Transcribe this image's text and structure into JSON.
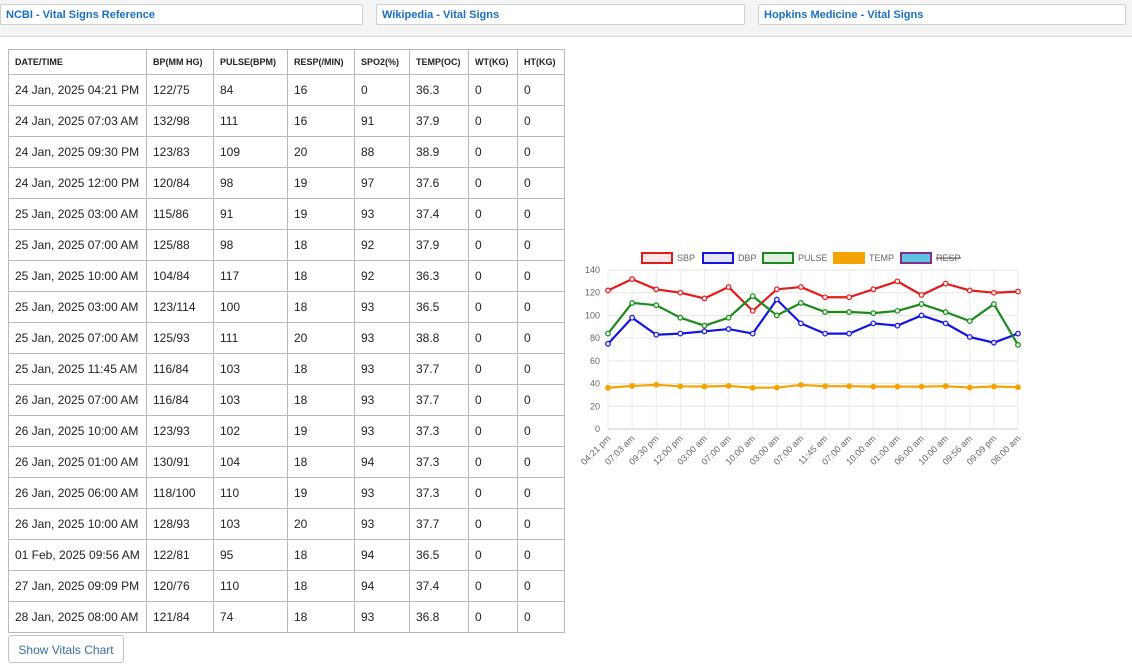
{
  "links": [
    {
      "label": "NCBI - Vital Signs Reference"
    },
    {
      "label": "Wikipedia - Vital Signs"
    },
    {
      "label": "Hopkins Medicine - Vital Signs"
    }
  ],
  "table": {
    "headers": [
      "DATE/TIME",
      "BP(MM HG)",
      "PULSE(BPM)",
      "RESP(/MIN)",
      "SPO2(%)",
      "TEMP(OC)",
      "WT(KG)",
      "HT(KG)"
    ],
    "rows": [
      [
        "24 Jan, 2025 04:21 PM",
        "122/75",
        "84",
        "16",
        "0",
        "36.3",
        "0",
        "0"
      ],
      [
        "24 Jan, 2025 07:03 AM",
        "132/98",
        "111",
        "16",
        "91",
        "37.9",
        "0",
        "0"
      ],
      [
        "24 Jan, 2025 09:30 PM",
        "123/83",
        "109",
        "20",
        "88",
        "38.9",
        "0",
        "0"
      ],
      [
        "24 Jan, 2025 12:00 PM",
        "120/84",
        "98",
        "19",
        "97",
        "37.6",
        "0",
        "0"
      ],
      [
        "25 Jan, 2025 03:00 AM",
        "115/86",
        "91",
        "19",
        "93",
        "37.4",
        "0",
        "0"
      ],
      [
        "25 Jan, 2025 07:00 AM",
        "125/88",
        "98",
        "18",
        "92",
        "37.9",
        "0",
        "0"
      ],
      [
        "25 Jan, 2025 10:00 AM",
        "104/84",
        "117",
        "18",
        "92",
        "36.3",
        "0",
        "0"
      ],
      [
        "25 Jan, 2025 03:00 AM",
        "123/114",
        "100",
        "18",
        "93",
        "36.5",
        "0",
        "0"
      ],
      [
        "25 Jan, 2025 07:00 AM",
        "125/93",
        "111",
        "20",
        "93",
        "38.8",
        "0",
        "0"
      ],
      [
        "25 Jan, 2025 11:45 AM",
        "116/84",
        "103",
        "18",
        "93",
        "37.7",
        "0",
        "0"
      ],
      [
        "26 Jan, 2025 07:00 AM",
        "116/84",
        "103",
        "18",
        "93",
        "37.7",
        "0",
        "0"
      ],
      [
        "26 Jan, 2025 10:00 AM",
        "123/93",
        "102",
        "19",
        "93",
        "37.3",
        "0",
        "0"
      ],
      [
        "26 Jan, 2025 01:00 AM",
        "130/91",
        "104",
        "18",
        "94",
        "37.3",
        "0",
        "0"
      ],
      [
        "26 Jan, 2025 06:00 AM",
        "118/100",
        "110",
        "19",
        "93",
        "37.3",
        "0",
        "0"
      ],
      [
        "26 Jan, 2025 10:00 AM",
        "128/93",
        "103",
        "20",
        "93",
        "37.7",
        "0",
        "0"
      ],
      [
        "01 Feb, 2025 09:56 AM",
        "122/81",
        "95",
        "18",
        "94",
        "36.5",
        "0",
        "0"
      ],
      [
        "27 Jan, 2025 09:09 PM",
        "120/76",
        "110",
        "18",
        "94",
        "37.4",
        "0",
        "0"
      ],
      [
        "28 Jan, 2025 08:00 AM",
        "121/84",
        "74",
        "18",
        "93",
        "36.8",
        "0",
        "0"
      ]
    ]
  },
  "show_chart_button": "Show Vitals Chart",
  "chart_data": {
    "type": "line",
    "categories": [
      "04:21 pm",
      "07:03 am",
      "09:30 pm",
      "12:00 pm",
      "03:00 am",
      "07:00 am",
      "10:00 am",
      "03:00 am",
      "07:00 am",
      "11:45 am",
      "07:00 am",
      "10:00 am",
      "01:00 am",
      "06:00 am",
      "10:00 am",
      "09:56 am",
      "09:09 pm",
      "08:00 am"
    ],
    "ylim": [
      0,
      140
    ],
    "yticks": [
      0,
      20,
      40,
      60,
      80,
      100,
      120,
      140
    ],
    "grid": true,
    "legend_position": "top",
    "series": [
      {
        "name": "SBP",
        "color": "#e31b1b",
        "fill": "#fde8e8",
        "hidden": false,
        "values": [
          122,
          132,
          123,
          120,
          115,
          125,
          104,
          123,
          125,
          116,
          116,
          123,
          130,
          118,
          128,
          122,
          120,
          121
        ]
      },
      {
        "name": "DBP",
        "color": "#1414e0",
        "fill": "#e6e6fb",
        "hidden": false,
        "values": [
          75,
          98,
          83,
          84,
          86,
          88,
          84,
          114,
          93,
          84,
          84,
          93,
          91,
          100,
          93,
          81,
          76,
          84
        ]
      },
      {
        "name": "PULSE",
        "color": "#1a8a1a",
        "fill": "#e2efe2",
        "hidden": false,
        "values": [
          84,
          111,
          109,
          98,
          91,
          98,
          117,
          100,
          111,
          103,
          103,
          102,
          104,
          110,
          103,
          95,
          110,
          74
        ]
      },
      {
        "name": "TEMP",
        "color": "#f5a300",
        "fill": "#f5a300",
        "hidden": false,
        "values": [
          36.3,
          37.9,
          38.9,
          37.6,
          37.4,
          37.9,
          36.3,
          36.5,
          38.8,
          37.7,
          37.7,
          37.3,
          37.3,
          37.3,
          37.7,
          36.5,
          37.4,
          36.8
        ]
      },
      {
        "name": "RESP",
        "color": "#8a2a8a",
        "fill": "#5fc4e0",
        "hidden": true,
        "values": [
          16,
          16,
          20,
          19,
          19,
          18,
          18,
          18,
          20,
          18,
          18,
          19,
          18,
          19,
          20,
          18,
          18,
          18
        ]
      }
    ]
  }
}
